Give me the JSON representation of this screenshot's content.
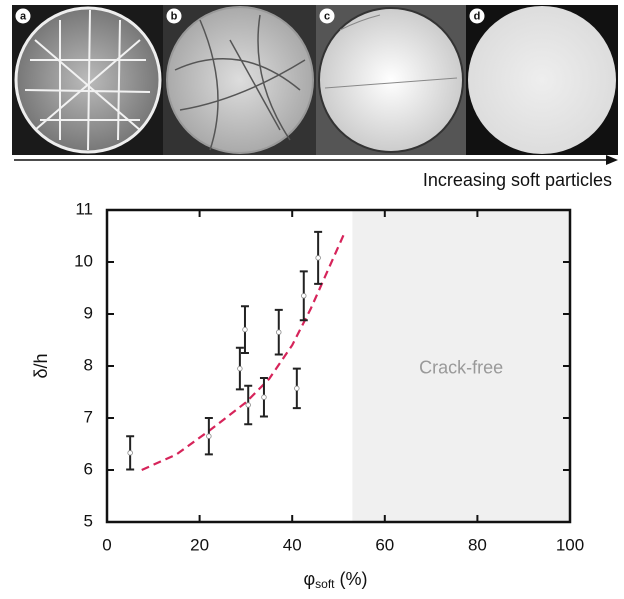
{
  "panels": [
    "a",
    "b",
    "c",
    "d"
  ],
  "arrow_label": "Increasing soft particles",
  "chart_data": {
    "type": "scatter",
    "xlabel": {
      "main": "φ",
      "sub": "soft",
      "rest": " (%)"
    },
    "ylabel": "δ/h",
    "xlim": [
      0,
      100
    ],
    "xticks": [
      0,
      20,
      40,
      60,
      80,
      100
    ],
    "ylim": [
      5,
      11
    ],
    "yticks": [
      5,
      6,
      7,
      8,
      9,
      10,
      11
    ],
    "series": [
      {
        "color": "#222222",
        "x": [
          5,
          22,
          28.7,
          29.8,
          30.5,
          33.9,
          37.1,
          41,
          42.5,
          45.6
        ],
        "values": [
          6.33,
          6.65,
          7.95,
          8.7,
          7.25,
          7.4,
          8.65,
          7.57,
          9.35,
          10.08
        ],
        "errors": [
          0.32,
          0.35,
          0.4,
          0.45,
          0.37,
          0.37,
          0.43,
          0.38,
          0.47,
          0.5
        ]
      }
    ],
    "curve": {
      "color": "#d6245a",
      "x": [
        7.5,
        15,
        22,
        30,
        35,
        40,
        44,
        47,
        50,
        51.5
      ],
      "y": [
        6.0,
        6.3,
        6.75,
        7.3,
        7.75,
        8.4,
        9.1,
        9.7,
        10.3,
        10.6
      ]
    },
    "shaded_region": {
      "xlim": [
        53,
        100
      ],
      "label": "Crack-free",
      "color": "#f0f0f0"
    }
  }
}
